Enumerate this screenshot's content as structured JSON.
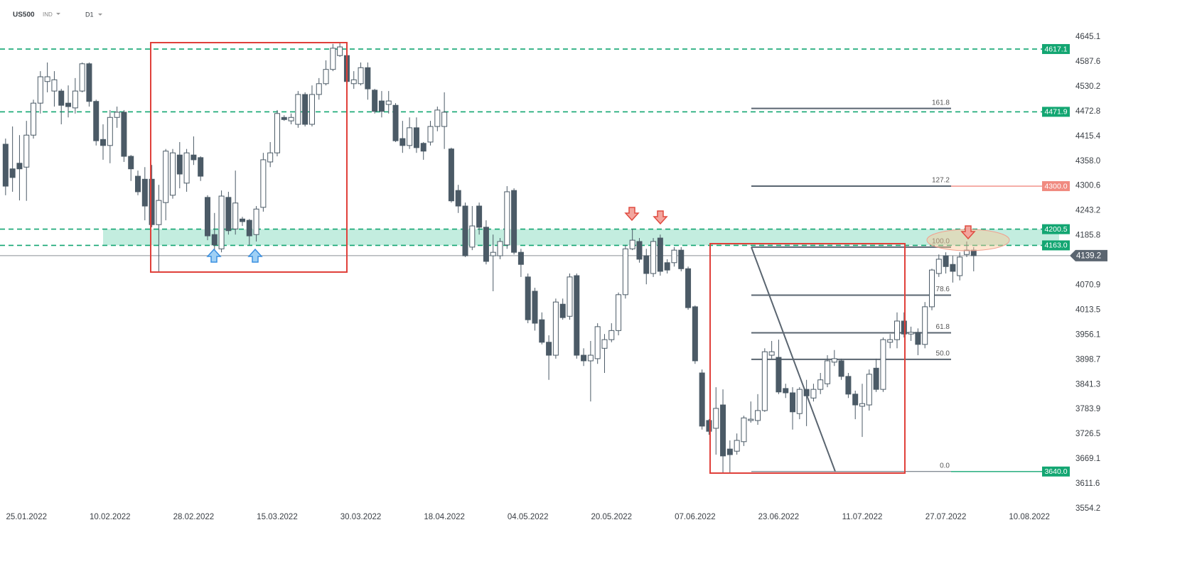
{
  "header": {
    "symbol": "US500",
    "market": "IND",
    "interval": "D1"
  },
  "chart_data": {
    "type": "candlestick",
    "open": [
      4397,
      4340,
      4353,
      4344,
      4418,
      4492,
      4542,
      4520,
      4520,
      4492,
      4481,
      4520,
      4583,
      4496,
      4408,
      4394,
      4459,
      4471,
      4369,
      4323,
      4316,
      4316,
      4211,
      4262,
      4279,
      4372,
      4307,
      4372,
      4366,
      4274,
      4188,
      4155,
      4274,
      4201,
      4224,
      4221,
      4188,
      4251,
      4356,
      4377,
      4459,
      4451,
      4443,
      4512,
      4443,
      4512,
      4537,
      4570,
      4602,
      4602,
      4537,
      4537,
      4574,
      4522,
      4497,
      4489,
      4487,
      4410,
      4394,
      4435,
      4399,
      4402,
      4438,
      4438,
      4386,
      4290,
      4254,
      4159,
      4254,
      4205,
      4139,
      4139,
      4164,
      4290,
      4147,
      4090,
      4057,
      3991,
      3939,
      3909,
      4027,
      3999,
      4093,
      3909,
      3896,
      3901,
      3925,
      3945,
      3966,
      4049,
      4155,
      4172,
      4139,
      4098,
      4180,
      4123,
      4123,
      4152,
      4109,
      4021,
      3868,
      3758,
      3740,
      3794,
      3692,
      3687,
      3709,
      3758,
      3758,
      3781,
      3909,
      3904,
      3832,
      3822,
      3774,
      3830,
      3810,
      3830,
      3843,
      3893,
      3896,
      3860,
      3819,
      3791,
      3794,
      3879,
      3830,
      3939,
      3945,
      3988,
      3958,
      3962,
      3934,
      4021,
      4098,
      4139,
      4119,
      4093,
      4142,
      4152
    ],
    "high": [
      4410,
      4438,
      4418,
      4451,
      4500,
      4566,
      4586,
      4566,
      4525,
      4533,
      4550,
      4586,
      4586,
      4500,
      4443,
      4476,
      4484,
      4476,
      4372,
      4336,
      4344,
      4349,
      4303,
      4386,
      4386,
      4402,
      4386,
      4415,
      4369,
      4279,
      4238,
      4290,
      4287,
      4336,
      4229,
      4224,
      4254,
      4377,
      4402,
      4476,
      4464,
      4468,
      4520,
      4517,
      4533,
      4550,
      4591,
      4629,
      4632,
      4624,
      4566,
      4586,
      4586,
      4525,
      4520,
      4520,
      4492,
      4451,
      4459,
      4459,
      4402,
      4451,
      4484,
      4517,
      4389,
      4303,
      4262,
      4254,
      4262,
      4221,
      4188,
      4180,
      4300,
      4295,
      4155,
      4098,
      4065,
      4008,
      3955,
      4040,
      4040,
      4098,
      4098,
      3925,
      3942,
      3983,
      3958,
      3983,
      4054,
      4164,
      4201,
      4180,
      4155,
      4180,
      4188,
      4131,
      4159,
      4159,
      4114,
      4024,
      3876,
      3761,
      3835,
      3830,
      3712,
      3728,
      3769,
      3802,
      3819,
      3925,
      3942,
      3945,
      3843,
      3835,
      3835,
      3852,
      3843,
      3868,
      3909,
      3921,
      3901,
      3868,
      3827,
      3843,
      3876,
      3901,
      3950,
      3958,
      4008,
      4008,
      3975,
      3971,
      4032,
      4109,
      4142,
      4147,
      4139,
      4147,
      4172,
      4159
    ],
    "low": [
      4279,
      4287,
      4267,
      4266,
      4410,
      4468,
      4517,
      4484,
      4443,
      4459,
      4468,
      4517,
      4484,
      4394,
      4361,
      4353,
      4435,
      4356,
      4312,
      4279,
      4221,
      4205,
      4103,
      4221,
      4271,
      4295,
      4287,
      4349,
      4312,
      4175,
      4147,
      4147,
      4188,
      4188,
      4208,
      4164,
      4172,
      4241,
      4344,
      4369,
      4451,
      4443,
      4435,
      4438,
      4438,
      4500,
      4533,
      4566,
      4599,
      4537,
      4525,
      4533,
      4500,
      4468,
      4459,
      4468,
      4402,
      4377,
      4386,
      4377,
      4361,
      4394,
      4427,
      4386,
      4262,
      4238,
      4136,
      4152,
      4188,
      4119,
      4057,
      4131,
      4155,
      4142,
      4090,
      3983,
      3966,
      3934,
      3852,
      3901,
      3991,
      3991,
      3901,
      3884,
      3802,
      3889,
      3868,
      3939,
      3955,
      4040,
      4152,
      4123,
      4073,
      4090,
      4093,
      4098,
      4114,
      4103,
      4014,
      3889,
      3737,
      3725,
      3679,
      3638,
      3638,
      3679,
      3699,
      3753,
      3748,
      3778,
      3901,
      3819,
      3810,
      3737,
      3761,
      3745,
      3802,
      3819,
      3835,
      3884,
      3852,
      3810,
      3761,
      3720,
      3781,
      3824,
      3824,
      3925,
      3925,
      3950,
      3942,
      3909,
      3925,
      4013,
      4090,
      4098,
      4077,
      4082,
      4136,
      4103
    ],
    "close": [
      4300,
      4320,
      4340,
      4418,
      4492,
      4553,
      4553,
      4546,
      4487,
      4484,
      4520,
      4583,
      4496,
      4405,
      4394,
      4459,
      4471,
      4369,
      4340,
      4287,
      4254,
      4211,
      4267,
      4381,
      4377,
      4328,
      4377,
      4361,
      4323,
      4185,
      4164,
      4277,
      4197,
      4261,
      4218,
      4185,
      4247,
      4361,
      4377,
      4468,
      4454,
      4459,
      4512,
      4443,
      4512,
      4537,
      4570,
      4619,
      4622,
      4542,
      4546,
      4574,
      4525,
      4473,
      4473,
      4497,
      4405,
      4394,
      4435,
      4389,
      4381,
      4438,
      4476,
      4471,
      4266,
      4254,
      4139,
      4208,
      4205,
      4126,
      4147,
      4172,
      4287,
      4147,
      4119,
      3991,
      3983,
      3939,
      3909,
      4032,
      3996,
      4090,
      3909,
      3896,
      3909,
      3975,
      3945,
      3966,
      4049,
      4155,
      4175,
      4131,
      4098,
      4172,
      4103,
      4106,
      4152,
      4109,
      4019,
      3896,
      3745,
      3733,
      3786,
      3676,
      3679,
      3712,
      3764,
      3761,
      3781,
      3917,
      3917,
      3824,
      3822,
      3778,
      3830,
      3815,
      3830,
      3852,
      3896,
      3901,
      3860,
      3819,
      3794,
      3797,
      3865,
      3830,
      3945,
      3945,
      3988,
      3958,
      3962,
      3934,
      4021,
      4106,
      4131,
      4114,
      4103,
      4136,
      4152,
      4139.2
    ],
    "up_color": "#ffffff",
    "down_color": "#4b5a66",
    "outline_color": "#4b5a66",
    "xlim": [
      -0.8,
      152.8
    ],
    "xticks": [
      {
        "value": 3,
        "label": "25.01.2022"
      },
      {
        "value": 15,
        "label": "10.02.2022"
      },
      {
        "value": 27,
        "label": "28.02.2022"
      },
      {
        "value": 39,
        "label": "15.03.2022"
      },
      {
        "value": 51,
        "label": "30.03.2022"
      },
      {
        "value": 63,
        "label": "18.04.2022"
      },
      {
        "value": 75,
        "label": "04.05.2022"
      },
      {
        "value": 87,
        "label": "20.05.2022"
      },
      {
        "value": 99,
        "label": "07.06.2022"
      },
      {
        "value": 111,
        "label": "23.06.2022"
      },
      {
        "value": 123,
        "label": "11.07.2022"
      },
      {
        "value": 135,
        "label": "27.07.2022"
      },
      {
        "value": 147,
        "label": "10.08.2022"
      }
    ],
    "ylim": [
      3554.2,
      4664.8
    ],
    "yticks": [
      4645.1,
      4587.6,
      4530.2,
      4472.8,
      4415.4,
      {
        "value": 4358,
        "label": "4358.0"
      },
      4300.6,
      4243.2,
      4185.8,
      4070.9,
      4013.5,
      3956.1,
      3898.7,
      3841.3,
      3783.9,
      3726.5,
      3669.1,
      3611.6,
      3554.2
    ],
    "last_price": 4139.2,
    "levels": [
      {
        "value": 4617.1,
        "color": "#13a672",
        "style": "dashed"
      },
      {
        "value": 4471.9,
        "color": "#13a672",
        "style": "dashed"
      },
      {
        "value": 4300,
        "label": "4300.0",
        "color": "#f08a80",
        "style": "solid"
      },
      {
        "value": 4200.5,
        "color": "#13a672",
        "style": "dashed"
      },
      {
        "value": 4163,
        "label": "4163.0",
        "color": "#13a672",
        "style": "dashed"
      },
      {
        "value": 3640,
        "label": "3640.0",
        "color": "#13a672",
        "style": "solid"
      }
    ],
    "fib": {
      "low": 3640,
      "high": 4159,
      "levels": [
        161.8,
        127.2,
        {
          "value": 100,
          "label": "100.0"
        },
        78.6,
        61.8,
        {
          "value": 50,
          "label": "50.0"
        },
        {
          "value": 0,
          "label": "0.0"
        }
      ]
    }
  }
}
